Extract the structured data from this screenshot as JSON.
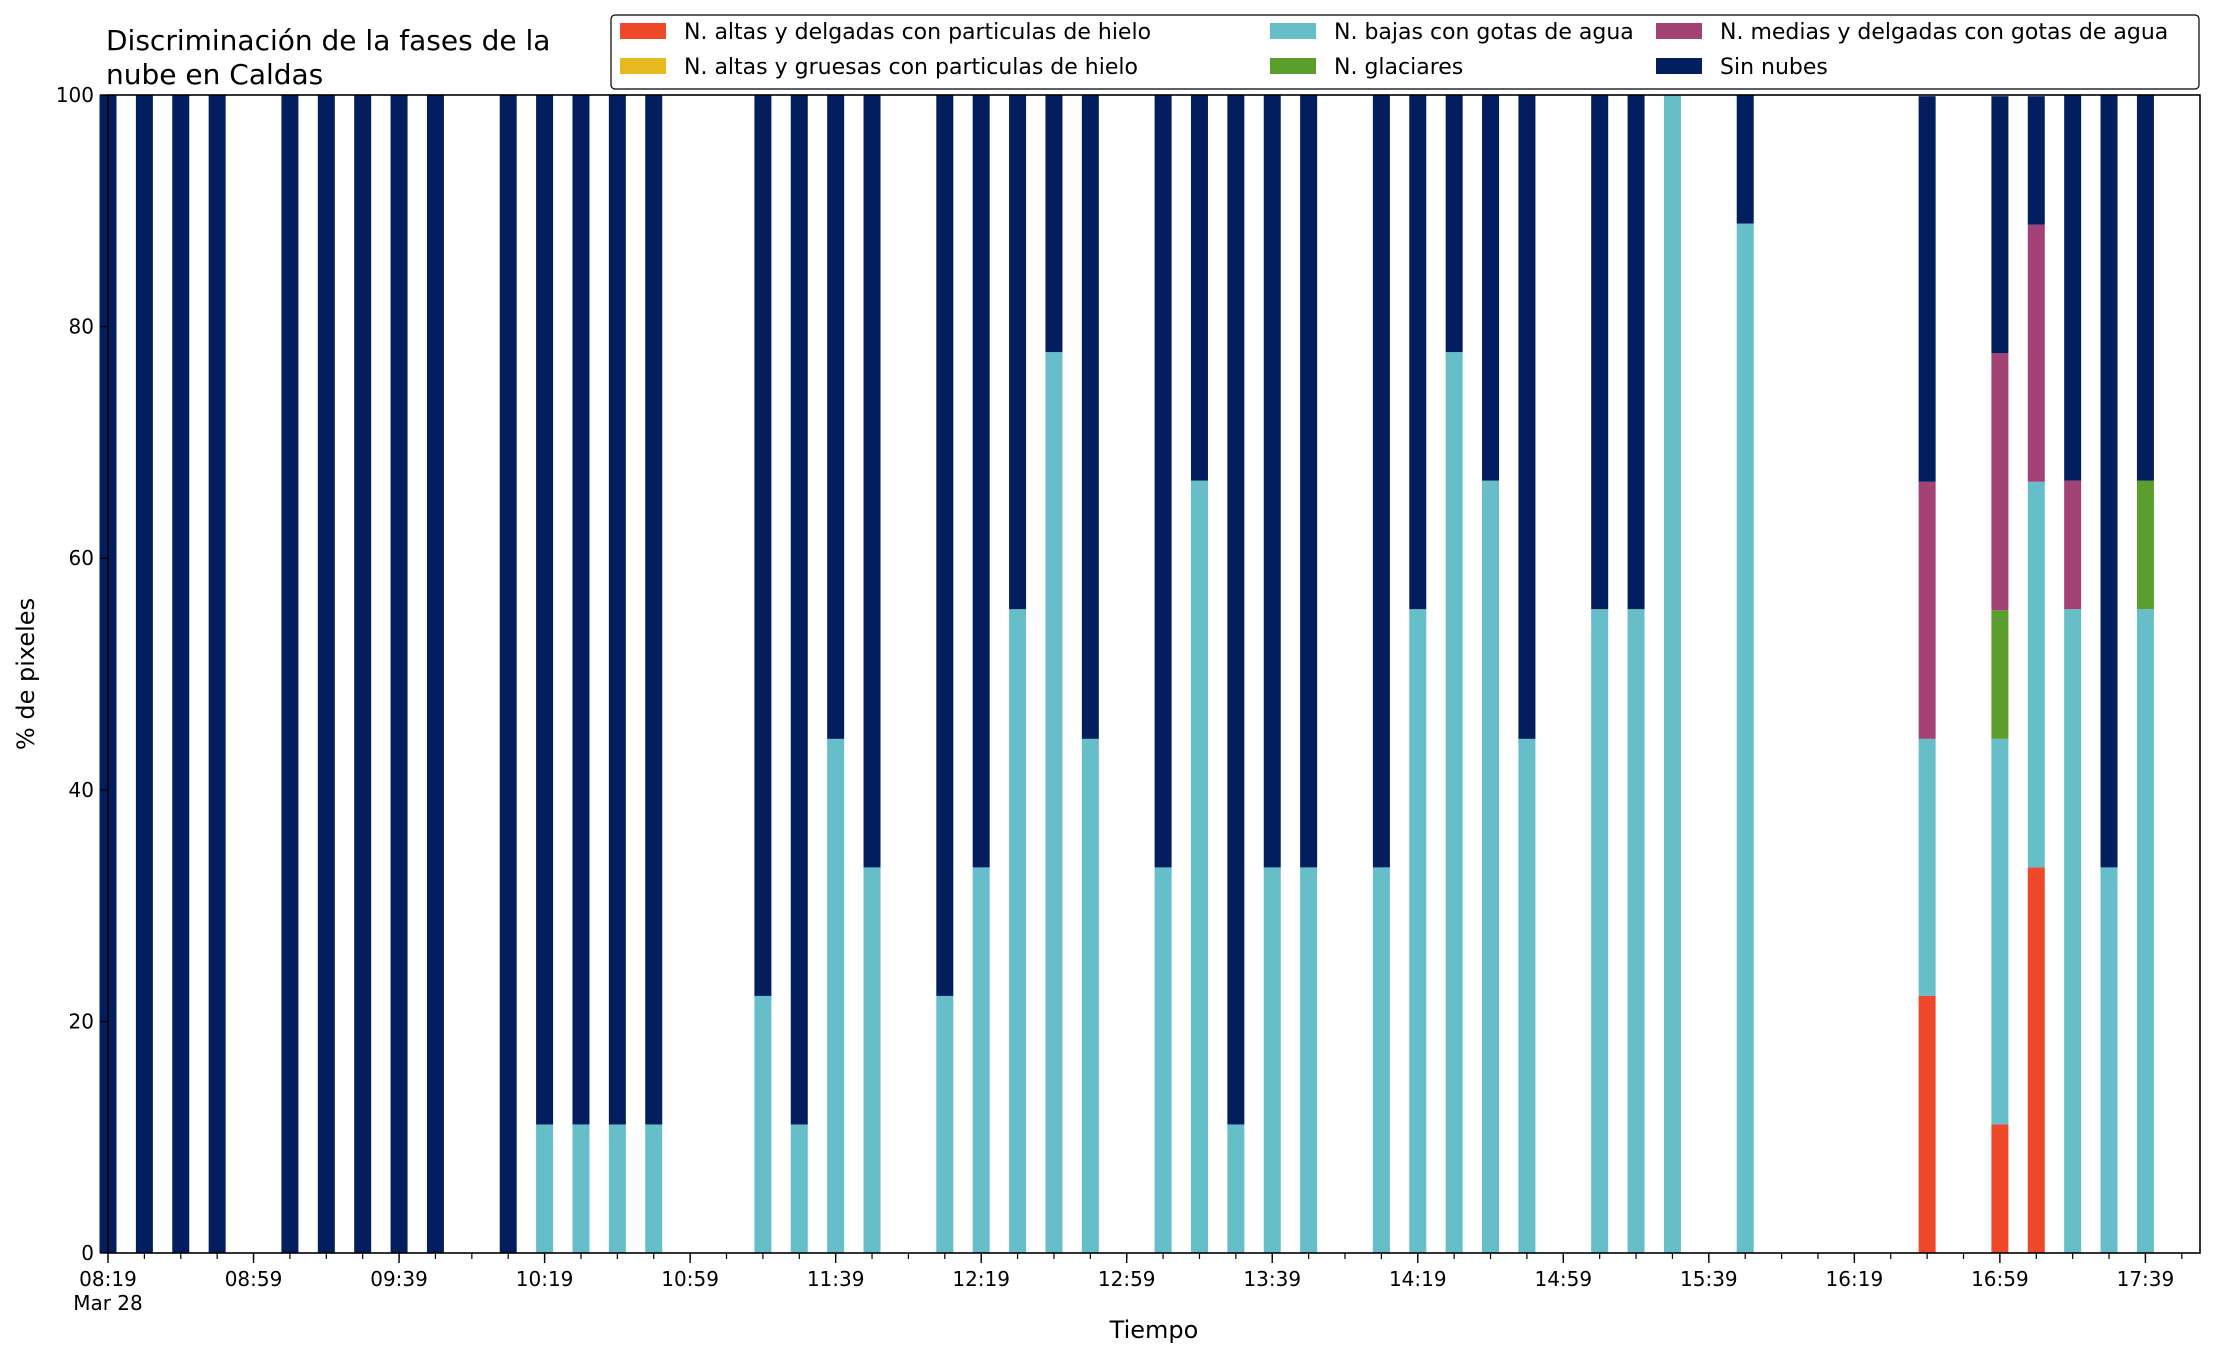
{
  "chart_data": {
    "type": "bar",
    "stacked": true,
    "title": "Discriminación de la fases de la\nnube en Caldas",
    "xlabel": "Tiempo",
    "ylabel": "% de pixeles",
    "ylim": [
      0,
      100
    ],
    "yticks": [
      0,
      20,
      40,
      60,
      80,
      100
    ],
    "x_tick_labels": [
      "08:19",
      "08:59",
      "09:39",
      "10:19",
      "10:59",
      "11:39",
      "12:19",
      "12:59",
      "13:39",
      "14:19",
      "14:59",
      "15:39",
      "16:19",
      "16:59",
      "17:39"
    ],
    "x_date_label": "Mar 28",
    "x_start": "08:19",
    "x_end": "17:54",
    "bar_interval_minutes": 10,
    "times": [
      "08:19",
      "08:29",
      "08:39",
      "08:49",
      "09:09",
      "09:19",
      "09:29",
      "09:39",
      "09:49",
      "10:09",
      "10:19",
      "10:29",
      "10:39",
      "10:49",
      "11:19",
      "11:29",
      "11:39",
      "11:49",
      "12:09",
      "12:19",
      "12:29",
      "12:39",
      "12:49",
      "13:09",
      "13:19",
      "13:29",
      "13:39",
      "13:49",
      "14:09",
      "14:19",
      "14:29",
      "14:39",
      "14:49",
      "15:09",
      "15:19",
      "15:29",
      "15:49",
      "16:39",
      "16:59",
      "17:09",
      "17:19",
      "17:29",
      "17:39"
    ],
    "legend_position": "top-right",
    "series": [
      {
        "name": "N. altas y delgadas con particulas de hielo",
        "color": "#f0482a",
        "values": [
          0,
          0,
          0,
          0,
          0,
          0,
          0,
          0,
          0,
          0,
          0,
          0,
          0,
          0,
          0,
          0,
          0,
          0,
          0,
          0,
          0,
          0,
          0,
          0,
          0,
          0,
          0,
          0,
          0,
          0,
          0,
          0,
          0,
          0,
          0,
          0,
          0,
          22.2,
          11.1,
          33.3,
          0,
          0,
          0
        ]
      },
      {
        "name": "N. altas y gruesas con particulas de hielo",
        "color": "#e6b91e",
        "values": [
          0,
          0,
          0,
          0,
          0,
          0,
          0,
          0,
          0,
          0,
          0,
          0,
          0,
          0,
          0,
          0,
          0,
          0,
          0,
          0,
          0,
          0,
          0,
          0,
          0,
          0,
          0,
          0,
          0,
          0,
          0,
          0,
          0,
          0,
          0,
          0,
          0,
          0,
          0,
          0,
          0,
          0,
          0
        ]
      },
      {
        "name": "N. bajas con gotas de agua",
        "color": "#66bec9",
        "values": [
          0,
          0,
          0,
          0,
          0,
          0,
          0,
          0,
          0,
          0,
          11.1,
          11.1,
          11.1,
          11.1,
          22.2,
          11.1,
          44.4,
          33.3,
          22.2,
          33.3,
          55.6,
          77.8,
          44.4,
          33.3,
          66.7,
          11.1,
          33.3,
          33.3,
          33.3,
          55.6,
          77.8,
          66.7,
          44.4,
          55.6,
          55.6,
          100,
          88.9,
          22.2,
          33.3,
          33.3,
          55.6,
          33.3,
          55.6
        ]
      },
      {
        "name": "N. glaciares",
        "color": "#5c9e2e",
        "values": [
          0,
          0,
          0,
          0,
          0,
          0,
          0,
          0,
          0,
          0,
          0,
          0,
          0,
          0,
          0,
          0,
          0,
          0,
          0,
          0,
          0,
          0,
          0,
          0,
          0,
          0,
          0,
          0,
          0,
          0,
          0,
          0,
          0,
          0,
          0,
          0,
          0,
          0,
          11.1,
          0,
          0,
          0,
          11.1
        ]
      },
      {
        "name": "N. medias y delgadas con gotas de agua",
        "color": "#a34275",
        "values": [
          0,
          0,
          0,
          0,
          0,
          0,
          0,
          0,
          0,
          0,
          0,
          0,
          0,
          0,
          0,
          0,
          0,
          0,
          0,
          0,
          0,
          0,
          0,
          0,
          0,
          0,
          0,
          0,
          0,
          0,
          0,
          0,
          0,
          0,
          0,
          0,
          0,
          22.2,
          22.2,
          22.2,
          11.1,
          0,
          0
        ]
      },
      {
        "name": "Sin nubes",
        "color": "#031e5e",
        "values": [
          100,
          100,
          100,
          100,
          100,
          100,
          100,
          100,
          100,
          100,
          88.9,
          88.9,
          88.9,
          88.9,
          77.8,
          88.9,
          55.6,
          66.7,
          77.8,
          66.7,
          44.4,
          22.2,
          55.6,
          66.7,
          33.3,
          88.9,
          66.7,
          66.7,
          66.7,
          44.4,
          22.2,
          33.3,
          55.6,
          44.4,
          44.4,
          0,
          11.1,
          33.3,
          22.2,
          11.1,
          33.3,
          66.7,
          33.3
        ]
      }
    ]
  }
}
